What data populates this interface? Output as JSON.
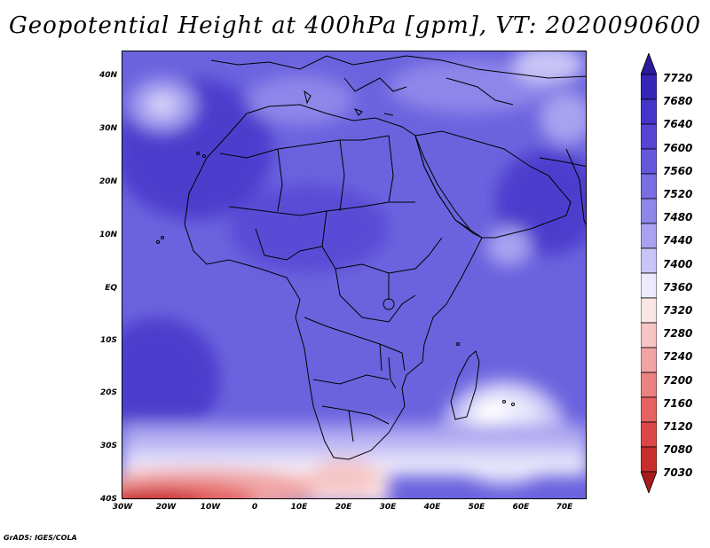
{
  "title": "Geopotential Height at 400hPa [gpm], VT: 2020090600",
  "y_ticks": [
    "40N",
    "30N",
    "20N",
    "10N",
    "EQ",
    "10S",
    "20S",
    "30S",
    "40S"
  ],
  "x_ticks": [
    "30W",
    "20W",
    "10W",
    "0",
    "10E",
    "20E",
    "30E",
    "40E",
    "50E",
    "60E",
    "70E"
  ],
  "colorbar": {
    "labels": [
      "7720",
      "7680",
      "7640",
      "7600",
      "7560",
      "7520",
      "7480",
      "7440",
      "7400",
      "7360",
      "7320",
      "7280",
      "7240",
      "7200",
      "7160",
      "7120",
      "7080",
      "7030"
    ],
    "colors": [
      "#2a1a9c",
      "#3526b8",
      "#4535c8",
      "#5545d2",
      "#6658dc",
      "#7a6ee4",
      "#8f86ea",
      "#a9a2f0",
      "#c9c5f6",
      "#ecebfc",
      "#fbe6e6",
      "#f6c6c6",
      "#f0a4a4",
      "#ea8282",
      "#e46262",
      "#dc4646",
      "#c82e2e",
      "#a81c1c"
    ]
  },
  "map": {
    "projection": "lat-lon",
    "lon_range": [
      -30,
      76
    ],
    "lat_range": [
      -40,
      45
    ],
    "variable": "Geopotential Height",
    "level": "400hPa",
    "units": "gpm",
    "valid_time": "2020090600"
  },
  "credit": "GrADS: IGES/COLA"
}
